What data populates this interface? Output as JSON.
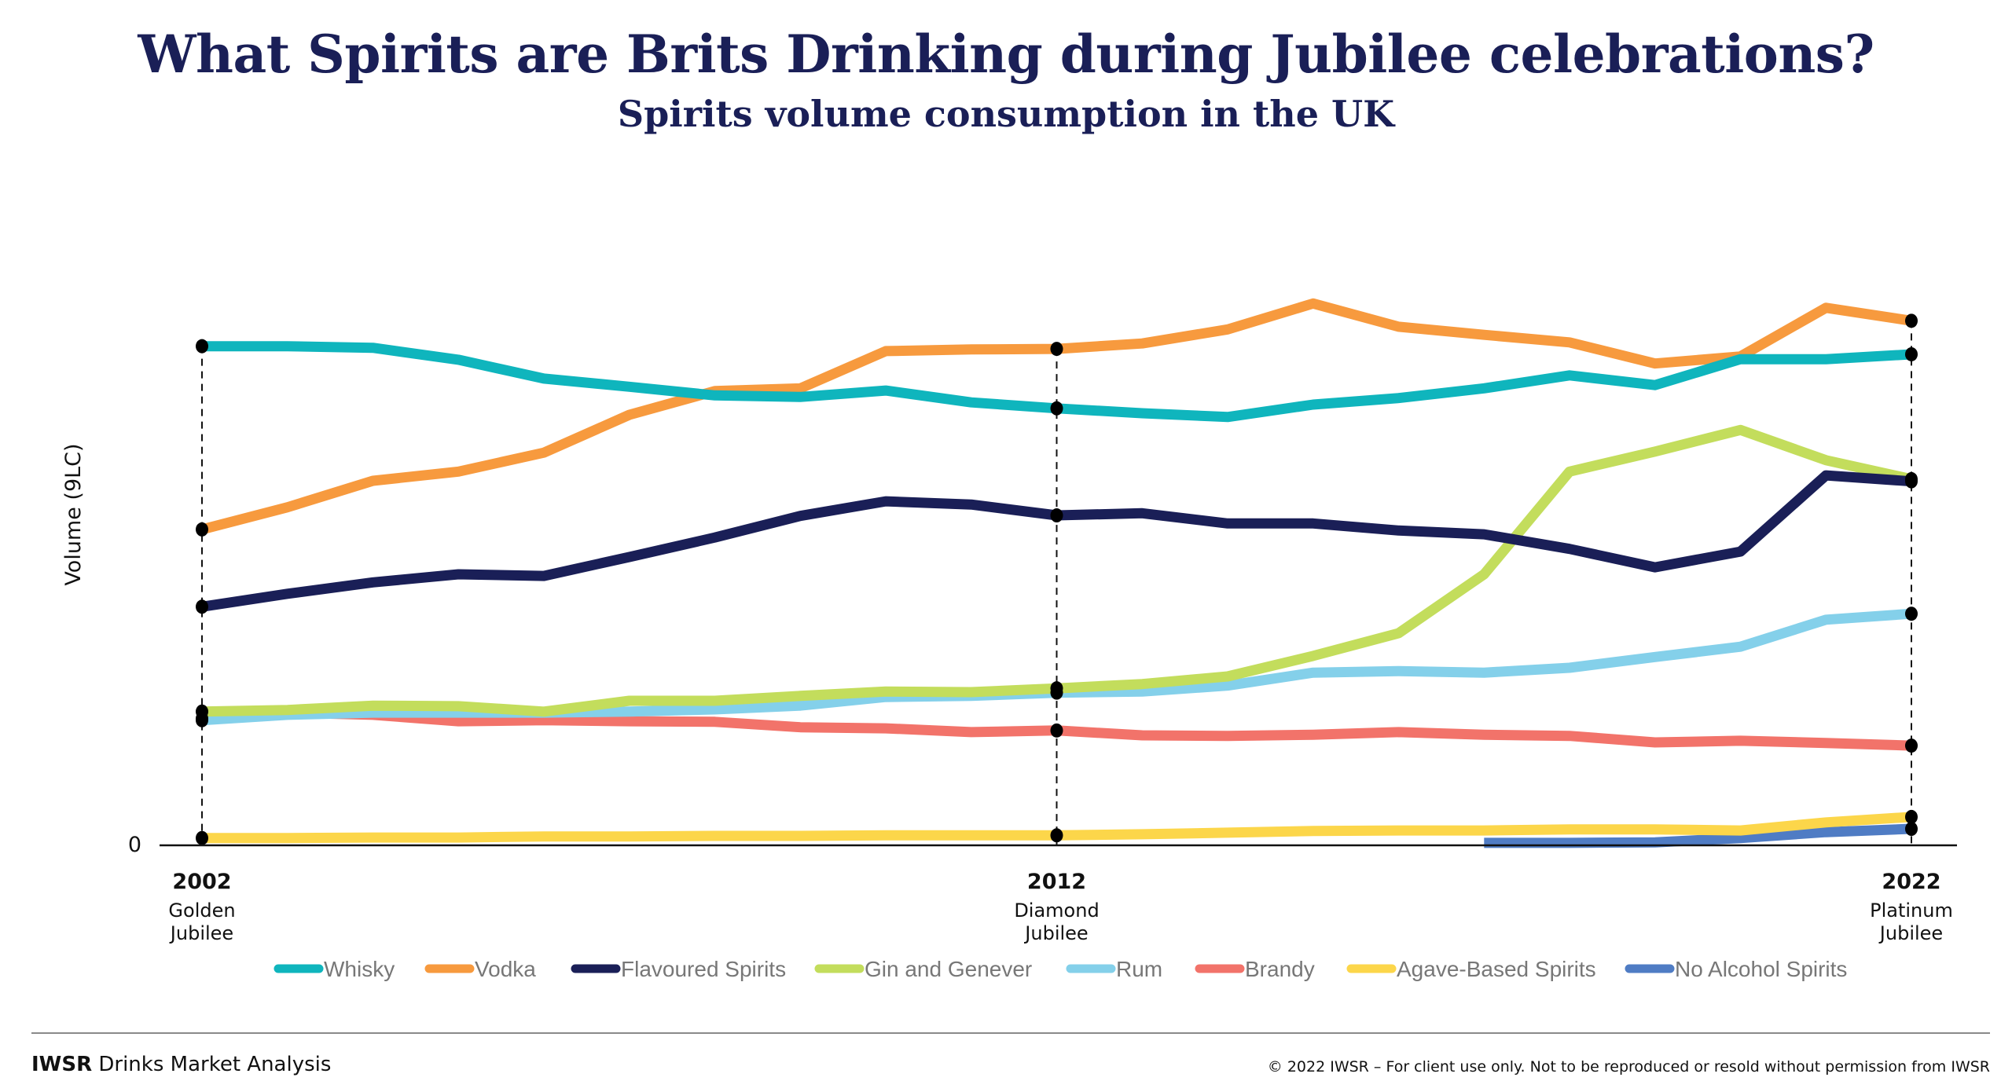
{
  "header": {
    "title": "What Spirits are Brits Drinking during Jubilee celebrations?",
    "subtitle": "Spirits volume consumption in the UK"
  },
  "footer": {
    "brand": "IWSR",
    "brand_suffix": "Drinks Market Analysis",
    "copyright": "© 2022 IWSR – For client use only. Not to be reproduced or resold without permission from IWSR"
  },
  "chart_data": {
    "type": "line",
    "title": "Spirits volume consumption in the UK",
    "xlabel": "",
    "ylabel": "Volume (9LC)",
    "value_units": "relative volume (estimated from line heights; only the 0 tick is labelled)",
    "y_ticks": [
      "0"
    ],
    "ylim": [
      0,
      110
    ],
    "grid": false,
    "legend_position": "bottom",
    "x": [
      2002,
      2003,
      2004,
      2005,
      2006,
      2007,
      2008,
      2009,
      2010,
      2011,
      2012,
      2013,
      2014,
      2015,
      2016,
      2017,
      2018,
      2019,
      2020,
      2021,
      2022
    ],
    "x_tick_labels": [
      {
        "year": 2002,
        "label": "2002",
        "sublabel_line1": "Golden",
        "sublabel_line2": "Jubilee"
      },
      {
        "year": 2012,
        "label": "2012",
        "sublabel_line1": "Diamond",
        "sublabel_line2": "Jubilee"
      },
      {
        "year": 2022,
        "label": "2022",
        "sublabel_line1": "Platinum",
        "sublabel_line2": "Jubilee"
      }
    ],
    "highlight_years": [
      2002,
      2012,
      2022
    ],
    "series": [
      {
        "name": "Whisky",
        "color": "#0fb5bd",
        "values": [
          92.2,
          92.2,
          91.9,
          89.7,
          86.2,
          84.7,
          83.1,
          82.8,
          84.0,
          81.8,
          80.7,
          79.8,
          79.1,
          81.4,
          82.6,
          84.4,
          86.8,
          85.0,
          89.8,
          89.8,
          90.7
        ]
      },
      {
        "name": "Vodka",
        "color": "#f79a3e",
        "values": [
          58.3,
          62.4,
          67.3,
          69.0,
          72.5,
          79.5,
          83.9,
          84.4,
          91.3,
          91.6,
          91.7,
          92.7,
          95.3,
          100.1,
          95.8,
          94.3,
          92.9,
          89.0,
          90.3,
          99.3,
          96.9
        ]
      },
      {
        "name": "Flavoured Spirits",
        "color": "#1a1f57",
        "values": [
          44.0,
          46.4,
          48.5,
          50.0,
          49.7,
          53.2,
          56.8,
          60.8,
          63.5,
          62.9,
          60.9,
          61.3,
          59.4,
          59.4,
          58.1,
          57.4,
          54.7,
          51.3,
          54.2,
          68.3,
          67.2
        ]
      },
      {
        "name": "Gin and Genever",
        "color": "#c3dd5c",
        "values": [
          24.6,
          24.9,
          25.7,
          25.6,
          24.6,
          26.6,
          26.6,
          27.5,
          28.3,
          28.2,
          28.9,
          29.7,
          31.1,
          34.9,
          39.1,
          50.0,
          69.0,
          72.7,
          76.7,
          71.1,
          67.6
        ]
      },
      {
        "name": "Rum",
        "color": "#84d0ea",
        "values": [
          23.0,
          24.0,
          24.4,
          24.4,
          24.4,
          24.6,
          25.0,
          25.7,
          27.3,
          27.5,
          28.1,
          28.3,
          29.4,
          31.8,
          32.1,
          31.8,
          32.7,
          34.7,
          36.6,
          41.6,
          42.7
        ]
      },
      {
        "name": "Brandy",
        "color": "#f2736a",
        "values": [
          23.3,
          24.4,
          24.0,
          22.8,
          23.0,
          22.8,
          22.7,
          21.7,
          21.5,
          20.8,
          21.1,
          20.2,
          20.1,
          20.3,
          20.8,
          20.3,
          20.1,
          18.9,
          19.2,
          18.8,
          18.3
        ]
      },
      {
        "name": "Agave-Based Spirits",
        "color": "#fcd64a",
        "values": [
          1.2,
          1.2,
          1.3,
          1.3,
          1.5,
          1.5,
          1.6,
          1.6,
          1.7,
          1.7,
          1.7,
          1.9,
          2.2,
          2.5,
          2.6,
          2.6,
          2.8,
          2.8,
          2.6,
          4.1,
          5.1
        ]
      },
      {
        "name": "No Alcohol Spirits",
        "color": "#4f7cc4",
        "values": [
          null,
          null,
          null,
          null,
          null,
          null,
          null,
          null,
          null,
          null,
          null,
          null,
          null,
          null,
          null,
          0.3,
          0.3,
          0.4,
          1.2,
          2.3,
          2.9
        ]
      }
    ],
    "legend": [
      "Whisky",
      "Vodka",
      "Flavoured Spirits",
      "Gin and Genever",
      "Rum",
      "Brandy",
      "Agave-Based Spirits",
      "No Alcohol Spirits"
    ]
  }
}
